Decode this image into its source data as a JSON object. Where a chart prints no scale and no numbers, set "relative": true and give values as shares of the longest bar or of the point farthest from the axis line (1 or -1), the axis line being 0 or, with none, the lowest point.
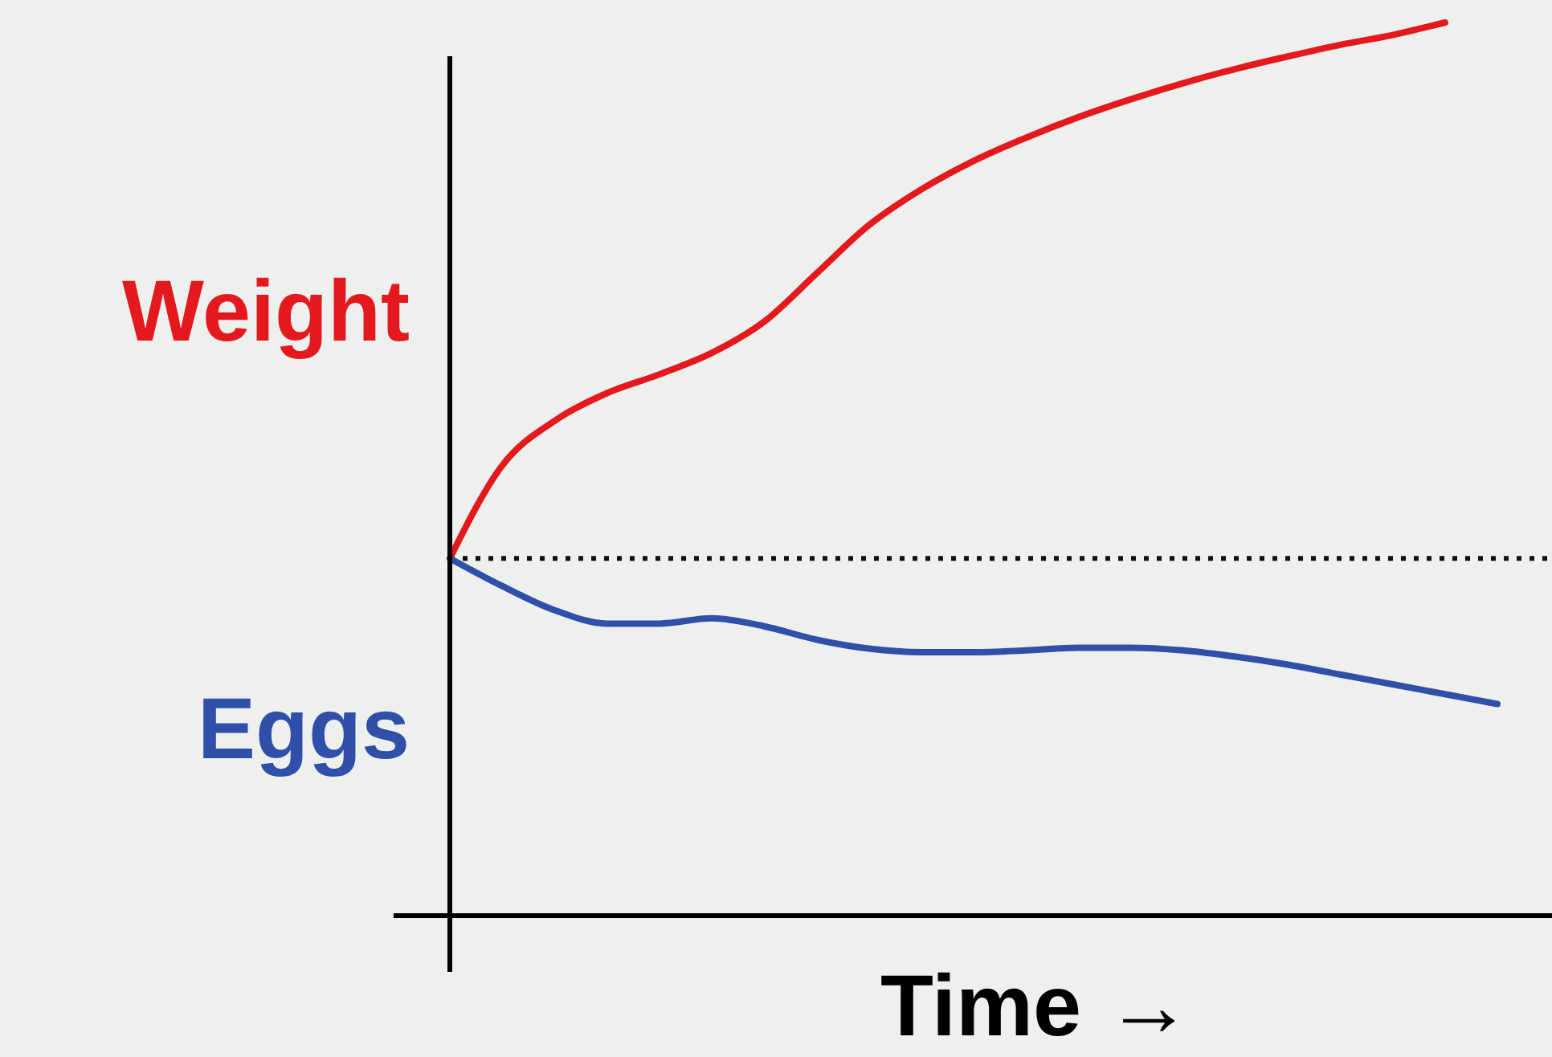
{
  "chart_data": {
    "type": "line",
    "relative": true,
    "xlabel": "Time →",
    "categories": [
      null,
      null,
      null,
      null,
      null,
      null,
      null,
      null,
      null,
      null,
      null,
      null,
      null,
      null,
      null,
      null,
      null,
      null,
      null,
      null,
      null
    ],
    "series": [
      {
        "name": "Weight",
        "color": "#e3191e",
        "values": [
          0.4,
          0.504,
          0.554,
          0.585,
          0.606,
          0.63,
          0.665,
          0.719,
          0.773,
          0.813,
          0.845,
          0.871,
          0.894,
          0.914,
          0.932,
          0.948,
          0.962,
          0.975,
          0.986,
          1,
          null
        ]
      },
      {
        "name": "Eggs",
        "color": "#2f4fa8",
        "values": [
          0.4,
          0.369,
          0.342,
          0.327,
          0.327,
          0.333,
          0.324,
          0.309,
          0.299,
          0.295,
          0.295,
          0.297,
          0.3,
          0.3,
          0.297,
          0.29,
          0.281,
          0.27,
          0.259,
          0.248,
          0.237
        ]
      }
    ],
    "ref_lines": [
      {
        "axis": "y",
        "value": 0.4,
        "color": "#111111",
        "line_style": "dotted"
      }
    ],
    "legend": false,
    "grid": false,
    "marker": "none",
    "line_style": "solid"
  }
}
